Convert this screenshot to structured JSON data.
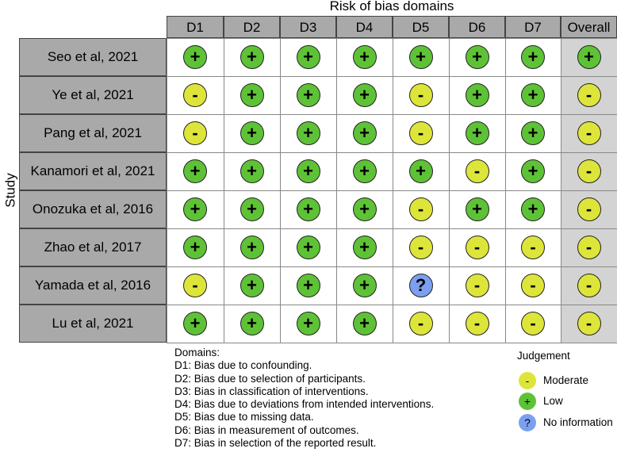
{
  "title": "Risk of bias domains",
  "ylabel": "Study",
  "columns": [
    "D1",
    "D2",
    "D3",
    "D4",
    "D5",
    "D6",
    "D7",
    "Overall"
  ],
  "studies": [
    {
      "name": "Seo et al, 2021",
      "judgements": [
        "low",
        "low",
        "low",
        "low",
        "low",
        "low",
        "low",
        "low"
      ]
    },
    {
      "name": "Ye et al, 2021",
      "judgements": [
        "moderate",
        "low",
        "low",
        "low",
        "moderate",
        "low",
        "low",
        "moderate"
      ]
    },
    {
      "name": "Pang et al, 2021",
      "judgements": [
        "moderate",
        "low",
        "low",
        "low",
        "moderate",
        "low",
        "low",
        "moderate"
      ]
    },
    {
      "name": "Kanamori et al, 2021",
      "judgements": [
        "low",
        "low",
        "low",
        "low",
        "low",
        "moderate",
        "low",
        "moderate"
      ]
    },
    {
      "name": "Onozuka et al, 2016",
      "judgements": [
        "low",
        "low",
        "low",
        "low",
        "moderate",
        "low",
        "low",
        "moderate"
      ]
    },
    {
      "name": "Zhao et al, 2017",
      "judgements": [
        "low",
        "low",
        "low",
        "low",
        "moderate",
        "moderate",
        "moderate",
        "moderate"
      ]
    },
    {
      "name": "Yamada et al, 2016",
      "judgements": [
        "moderate",
        "low",
        "low",
        "low",
        "no information",
        "moderate",
        "moderate",
        "moderate"
      ]
    },
    {
      "name": "Lu et al, 2021",
      "judgements": [
        "low",
        "low",
        "low",
        "low",
        "moderate",
        "moderate",
        "moderate",
        "moderate"
      ]
    }
  ],
  "symbols": {
    "low": "+",
    "moderate": "-",
    "no information": "?"
  },
  "domains_heading": "Domains:",
  "domains": [
    "D1: Bias due to confounding.",
    "D2: Bias due to selection of participants.",
    "D3: Bias in classification of interventions.",
    "D4: Bias due to deviations from intended interventions.",
    "D5: Bias due to missing data.",
    "D6: Bias in measurement of outcomes.",
    "D7: Bias in selection of the reported result."
  ],
  "judgement_legend": {
    "title": "Judgement",
    "items": [
      {
        "key": "moderate",
        "symbol": "-",
        "label": "Moderate"
      },
      {
        "key": "low",
        "symbol": "+",
        "label": "Low"
      },
      {
        "key": "no information",
        "symbol": "?",
        "label": "No information"
      }
    ]
  },
  "colors": {
    "low": "#5ec236",
    "moderate": "#dde53a",
    "no information": "#7c9ff0",
    "header": "#a9a9a9",
    "overall_bg": "#d3d3d3"
  }
}
